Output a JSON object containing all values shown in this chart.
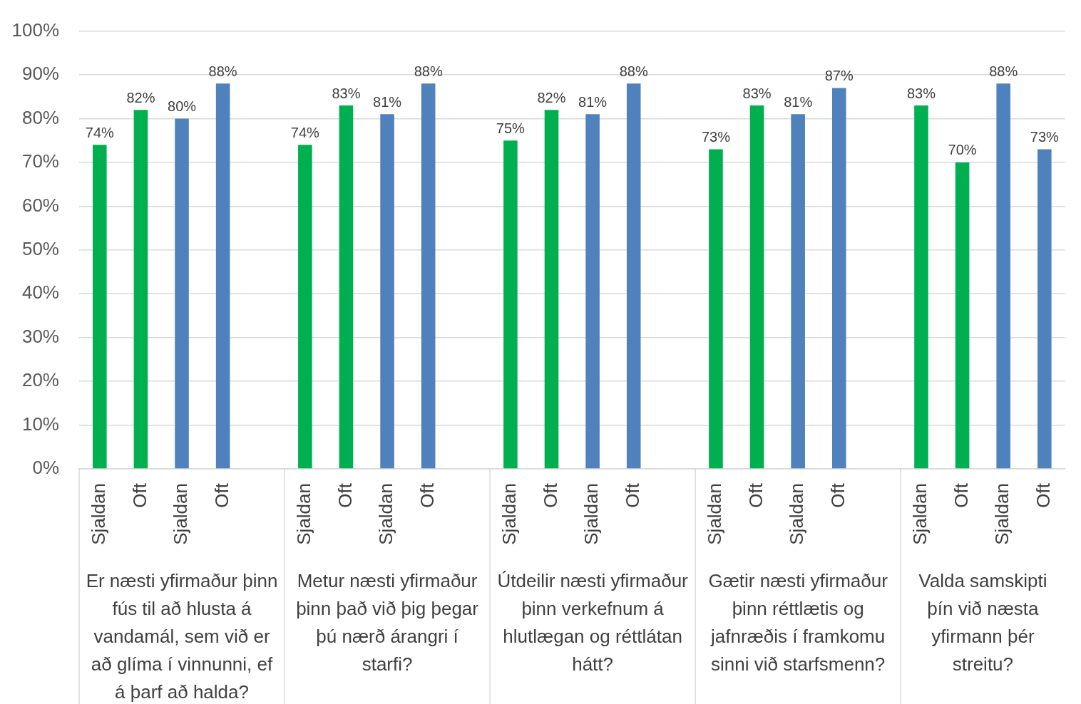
{
  "chart_data": {
    "type": "bar",
    "categories": [
      "Sjaldan",
      "Oft",
      "Sjaldan",
      "Oft",
      null,
      "Sjaldan",
      "Oft",
      "Sjaldan",
      "Oft",
      null,
      "Sjaldan",
      "Oft",
      "Sjaldan",
      "Oft",
      null,
      "Sjaldan",
      "Oft",
      "Sjaldan",
      "Oft",
      null,
      "Sjaldan",
      "Oft",
      "Sjaldan",
      "Oft"
    ],
    "values": [
      74,
      82,
      80,
      88,
      null,
      74,
      83,
      81,
      88,
      null,
      75,
      82,
      81,
      88,
      null,
      73,
      83,
      81,
      87,
      null,
      83,
      70,
      88,
      73
    ],
    "colors": [
      "#00b050",
      "#00b050",
      "#4f81bd",
      "#4f81bd",
      null,
      "#00b050",
      "#00b050",
      "#4f81bd",
      "#4f81bd",
      null,
      "#00b050",
      "#00b050",
      "#4f81bd",
      "#4f81bd",
      null,
      "#00b050",
      "#00b050",
      "#4f81bd",
      "#4f81bd",
      null,
      "#00b050",
      "#00b050",
      "#4f81bd",
      "#4f81bd"
    ],
    "ylim": [
      0,
      100
    ],
    "yticks": [
      {
        "value": 0,
        "label": "0%"
      },
      {
        "value": 10,
        "label": "10%"
      },
      {
        "value": 20,
        "label": "20%"
      },
      {
        "value": 30,
        "label": "30%"
      },
      {
        "value": 40,
        "label": "40%"
      },
      {
        "value": 50,
        "label": "50%"
      },
      {
        "value": 60,
        "label": "60%"
      },
      {
        "value": 70,
        "label": "70%"
      },
      {
        "value": 80,
        "label": "80%"
      },
      {
        "value": 90,
        "label": "90%"
      },
      {
        "value": 100,
        "label": "100%"
      }
    ],
    "grid": "y",
    "legend": false,
    "value_labels": [
      "74%",
      "82%",
      "80%",
      "88%",
      null,
      "74%",
      "83%",
      "81%",
      "88%",
      null,
      "75%",
      "82%",
      "81%",
      "88%",
      null,
      "73%",
      "83%",
      "81%",
      "87%",
      null,
      "83%",
      "70%",
      "88%",
      "73%"
    ],
    "annotations": [
      "Er næsti yfirmaður þinn fús til að hlusta á vandamál, sem við er að glíma í vinnunni, ef á þarf að halda?",
      "Metur næsti yfirmaður þinn það við þig þegar þú nærð árangri í starfi?",
      "Útdeilir næsti yfirmaður þinn verkefnum á hlutlægan og réttlátan hátt?",
      "Gætir næsti yfirmaður þinn réttlætis og jafnræðis í framkomu sinni við starfsmenn?",
      "Valda samskipti þín við næsta yfirmann þér streitu?"
    ]
  }
}
